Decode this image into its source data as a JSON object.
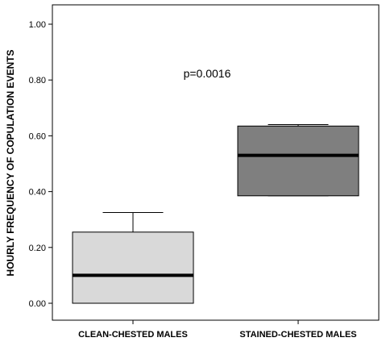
{
  "chart_data": {
    "type": "box",
    "ylabel": "HOURLY FREQUENCY OF COPULATION EVENTS",
    "xlabel": "",
    "ylim": [
      0.0,
      1.05
    ],
    "yticks": [
      0.0,
      0.2,
      0.4,
      0.6,
      0.8,
      1.0
    ],
    "ytick_labels": [
      "0.00",
      "0.20",
      "0.40",
      "0.60",
      "0.80",
      "1.00"
    ],
    "grid": false,
    "annotation": "p=0.0016",
    "categories": [
      "CLEAN-CHESTED MALES",
      "STAINED-CHESTED MALES"
    ],
    "boxes": [
      {
        "category": "CLEAN-CHESTED MALES",
        "min": 0.0,
        "q1": 0.0,
        "median": 0.1,
        "q3": 0.255,
        "max": 0.325,
        "color": "#d9d9d9"
      },
      {
        "category": "STAINED-CHESTED MALES",
        "min": 0.385,
        "q1": 0.385,
        "median": 0.53,
        "q3": 0.635,
        "max": 0.64,
        "color": "#7f7f7f"
      }
    ]
  }
}
